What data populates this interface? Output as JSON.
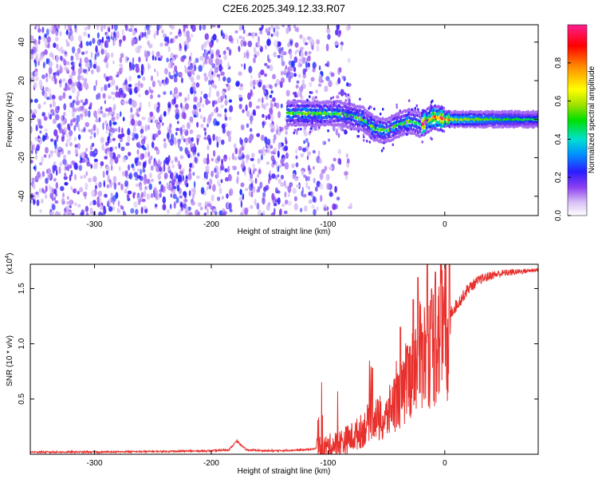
{
  "title": "C2E6.2025.349.12.33.R07",
  "colors": {
    "trace": "#e8302c",
    "axis": "#000000"
  },
  "chart_data": [
    {
      "type": "heatmap",
      "xlabel": "Height of straight line (km)",
      "ylabel": "Frequency (Hz)",
      "xlim": [
        -355,
        80
      ],
      "ylim": [
        -50,
        49
      ],
      "xticks": [
        -300,
        -200,
        -100,
        0
      ],
      "xtick_labels": [
        "-300",
        "-200",
        "-100",
        "0"
      ],
      "yticks": [
        -40,
        -20,
        0,
        20,
        40
      ],
      "ytick_labels": [
        "-40",
        "-20",
        "0",
        "20",
        "40"
      ],
      "noise_region": [
        -355,
        -95
      ],
      "gap_region": [
        -183,
        -176
      ],
      "signal_centerline": {
        "x": [
          -130,
          -110,
          -90,
          -70,
          -60,
          -50,
          -40,
          -30,
          -20,
          -10,
          0,
          20,
          40,
          60,
          80
        ],
        "y": [
          3,
          3,
          3,
          0,
          -5,
          -6,
          -3,
          -1,
          -3,
          1,
          0,
          0,
          0,
          0,
          0
        ]
      },
      "colorbar": {
        "label": "Normalized spectral amplitude",
        "range": [
          0,
          1
        ],
        "ticks": [
          0.0,
          0.2,
          0.4,
          0.6,
          0.8
        ],
        "tick_labels": [
          "0.0",
          "0.2",
          "0.4",
          "0.6",
          "0.8"
        ]
      }
    },
    {
      "type": "line",
      "xlabel": "Height of straight line (km)",
      "ylabel": "SNR (10 * v/v)",
      "multiplier_label": "(x10",
      "multiplier_exp": "4",
      "multiplier_close": ")",
      "xlim": [
        -355,
        80
      ],
      "ylim": [
        0,
        1.72
      ],
      "xticks": [
        -300,
        -200,
        -100,
        0
      ],
      "xtick_labels": [
        "-300",
        "-200",
        "-100",
        "0"
      ],
      "yticks": [
        0.5,
        1.0,
        1.5
      ],
      "ytick_labels": [
        "0.5",
        "1.0",
        "1.5"
      ],
      "series": [
        {
          "name": "SNR",
          "color": "#e8302c",
          "x": [
            -355,
            -300,
            -250,
            -200,
            -185,
            -178,
            -170,
            -150,
            -120,
            -100,
            -90,
            -80,
            -70,
            -65,
            -60,
            -55,
            -50,
            -45,
            -40,
            -35,
            -30,
            -25,
            -20,
            -15,
            -10,
            -5,
            0,
            5,
            10,
            15,
            20,
            30,
            40,
            50,
            60,
            70,
            80
          ],
          "y": [
            0.02,
            0.02,
            0.025,
            0.03,
            0.04,
            0.12,
            0.04,
            0.03,
            0.04,
            0.06,
            0.1,
            0.15,
            0.22,
            0.3,
            0.35,
            0.28,
            0.32,
            0.45,
            0.5,
            0.55,
            0.7,
            0.85,
            0.9,
            0.95,
            1.0,
            1.1,
            1.2,
            1.28,
            1.35,
            1.42,
            1.5,
            1.58,
            1.62,
            1.64,
            1.65,
            1.66,
            1.67
          ],
          "spikes": [
            {
              "x": -62,
              "y": 0.78
            },
            {
              "x": -48,
              "y": 0.5
            },
            {
              "x": -38,
              "y": 1.15
            },
            {
              "x": -32,
              "y": 0.98
            },
            {
              "x": -27,
              "y": 1.4
            },
            {
              "x": -23,
              "y": 1.6
            },
            {
              "x": -19,
              "y": 1.1
            },
            {
              "x": -15,
              "y": 1.72
            },
            {
              "x": -8,
              "y": 1.65
            },
            {
              "x": -3,
              "y": 1.72
            }
          ]
        }
      ]
    }
  ]
}
